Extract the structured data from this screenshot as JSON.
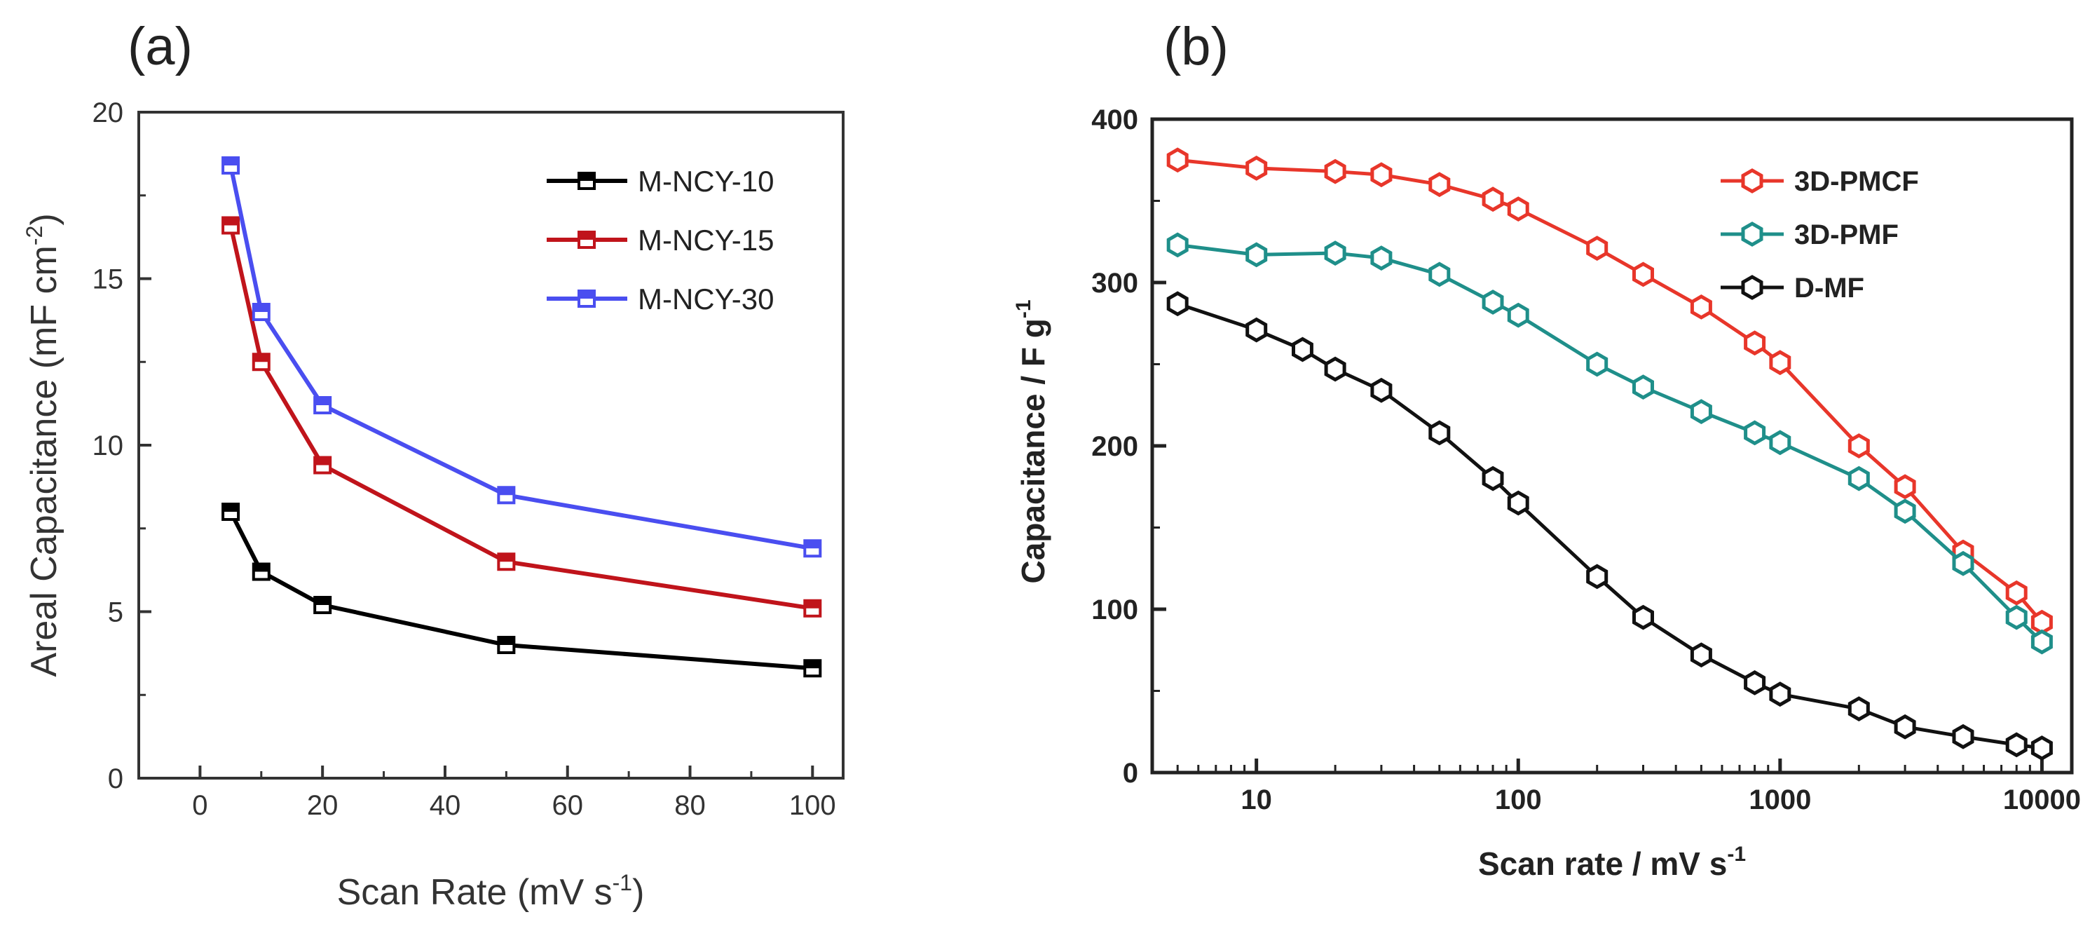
{
  "chart_data": [
    {
      "panel_label": "(a)",
      "type": "line",
      "xlabel": "Scan Rate (mV s",
      "xlabel_sup": "-1",
      "xlabel_end": ")",
      "ylabel": "Areal Capacitance (mF cm",
      "ylabel_sup": "-2",
      "ylabel_end": ")",
      "xlim": [
        -10,
        105
      ],
      "ylim": [
        0,
        20
      ],
      "xticks": [
        0,
        20,
        40,
        60,
        80,
        100
      ],
      "yticks": [
        0,
        5,
        10,
        15,
        20
      ],
      "grid": false,
      "legend_position": "top-right",
      "series": [
        {
          "name": "M-NCY-10",
          "color": "#000000",
          "marker": "square-half",
          "x": [
            5,
            10,
            20,
            50,
            100
          ],
          "y": [
            8.0,
            6.2,
            5.2,
            4.0,
            3.3
          ]
        },
        {
          "name": "M-NCY-15",
          "color": "#c0141b",
          "marker": "square-half",
          "x": [
            5,
            10,
            20,
            50,
            100
          ],
          "y": [
            16.6,
            12.5,
            9.4,
            6.5,
            5.1
          ]
        },
        {
          "name": "M-NCY-30",
          "color": "#4a4ef0",
          "marker": "square-half",
          "x": [
            5,
            10,
            20,
            50,
            100
          ],
          "y": [
            18.4,
            14.0,
            11.2,
            8.5,
            6.9
          ]
        }
      ]
    },
    {
      "panel_label": "(b)",
      "type": "line",
      "xlabel": "Scan rate / mV s",
      "xlabel_sup": "-1",
      "ylabel": "Capacitance / F g",
      "ylabel_sup": "-1",
      "xscale": "log",
      "xlim": [
        4,
        13000
      ],
      "ylim": [
        0,
        400
      ],
      "xticks": [
        10,
        100,
        1000,
        10000
      ],
      "yticks": [
        0,
        100,
        200,
        300,
        400
      ],
      "grid": false,
      "legend_position": "top-right",
      "series": [
        {
          "name": "3D-PMCF",
          "color": "#e8362a",
          "marker": "hexagon-open",
          "x": [
            5,
            10,
            20,
            30,
            50,
            80,
            100,
            200,
            300,
            500,
            800,
            1000,
            2000,
            3000,
            5000,
            8000,
            10000
          ],
          "y": [
            375,
            370,
            368,
            366,
            360,
            351,
            345,
            321,
            305,
            285,
            263,
            251,
            200,
            175,
            135,
            110,
            92
          ]
        },
        {
          "name": "3D-PMF",
          "color": "#1f8f8a",
          "marker": "hexagon-open",
          "x": [
            5,
            10,
            20,
            30,
            50,
            80,
            100,
            200,
            300,
            500,
            800,
            1000,
            2000,
            3000,
            5000,
            8000,
            10000
          ],
          "y": [
            323,
            317,
            318,
            315,
            305,
            288,
            280,
            250,
            236,
            221,
            208,
            202,
            180,
            160,
            128,
            95,
            80
          ]
        },
        {
          "name": "D-MF",
          "color": "#111111",
          "marker": "hexagon-open",
          "x": [
            5,
            10,
            15,
            20,
            30,
            50,
            80,
            100,
            200,
            300,
            500,
            800,
            1000,
            2000,
            3000,
            5000,
            8000,
            10000
          ],
          "y": [
            287,
            271,
            259,
            247,
            234,
            208,
            180,
            165,
            120,
            95,
            72,
            55,
            48,
            39,
            28,
            22,
            17,
            15
          ]
        }
      ]
    }
  ]
}
